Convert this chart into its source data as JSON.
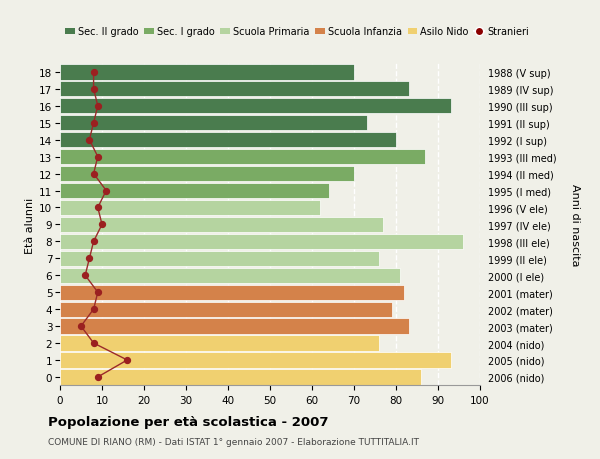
{
  "ages": [
    18,
    17,
    16,
    15,
    14,
    13,
    12,
    11,
    10,
    9,
    8,
    7,
    6,
    5,
    4,
    3,
    2,
    1,
    0
  ],
  "bar_values": [
    70,
    83,
    93,
    73,
    80,
    87,
    70,
    64,
    62,
    77,
    96,
    76,
    81,
    82,
    79,
    83,
    76,
    93,
    86
  ],
  "stranieri_values": [
    8,
    8,
    9,
    8,
    7,
    9,
    8,
    11,
    9,
    10,
    8,
    7,
    6,
    9,
    8,
    5,
    8,
    16,
    9
  ],
  "right_labels": [
    "1988 (V sup)",
    "1989 (IV sup)",
    "1990 (III sup)",
    "1991 (II sup)",
    "1992 (I sup)",
    "1993 (III med)",
    "1994 (II med)",
    "1995 (I med)",
    "1996 (V ele)",
    "1997 (IV ele)",
    "1998 (III ele)",
    "1999 (II ele)",
    "2000 (I ele)",
    "2001 (mater)",
    "2002 (mater)",
    "2003 (mater)",
    "2004 (nido)",
    "2005 (nido)",
    "2006 (nido)"
  ],
  "bar_colors": [
    "#4a7c4e",
    "#4a7c4e",
    "#4a7c4e",
    "#4a7c4e",
    "#4a7c4e",
    "#7aab64",
    "#7aab64",
    "#7aab64",
    "#b5d4a0",
    "#b5d4a0",
    "#b5d4a0",
    "#b5d4a0",
    "#b5d4a0",
    "#d4824a",
    "#d4824a",
    "#d4824a",
    "#f0d070",
    "#f0d070",
    "#f0d070"
  ],
  "legend_labels": [
    "Sec. II grado",
    "Sec. I grado",
    "Scuola Primaria",
    "Scuola Infanzia",
    "Asilo Nido",
    "Stranieri"
  ],
  "legend_colors": [
    "#4a7c4e",
    "#7aab64",
    "#b5d4a0",
    "#d4824a",
    "#f0d070",
    "#8b0000"
  ],
  "title_text": "Popolazione per età scolastica - 2007",
  "subtitle": "COMUNE DI RIANO (RM) - Dati ISTAT 1° gennaio 2007 - Elaborazione TUTTITALIA.IT",
  "ylabel": "Età alunni",
  "ylabel_right": "Anni di nascita",
  "xlim": [
    0,
    100
  ],
  "xticks": [
    0,
    10,
    20,
    30,
    40,
    50,
    60,
    70,
    80,
    90,
    100
  ],
  "line_color": "#9b2a2a",
  "dot_color": "#9b2020",
  "bg_color": "#f0f0e8",
  "grid_color": "#ffffff"
}
